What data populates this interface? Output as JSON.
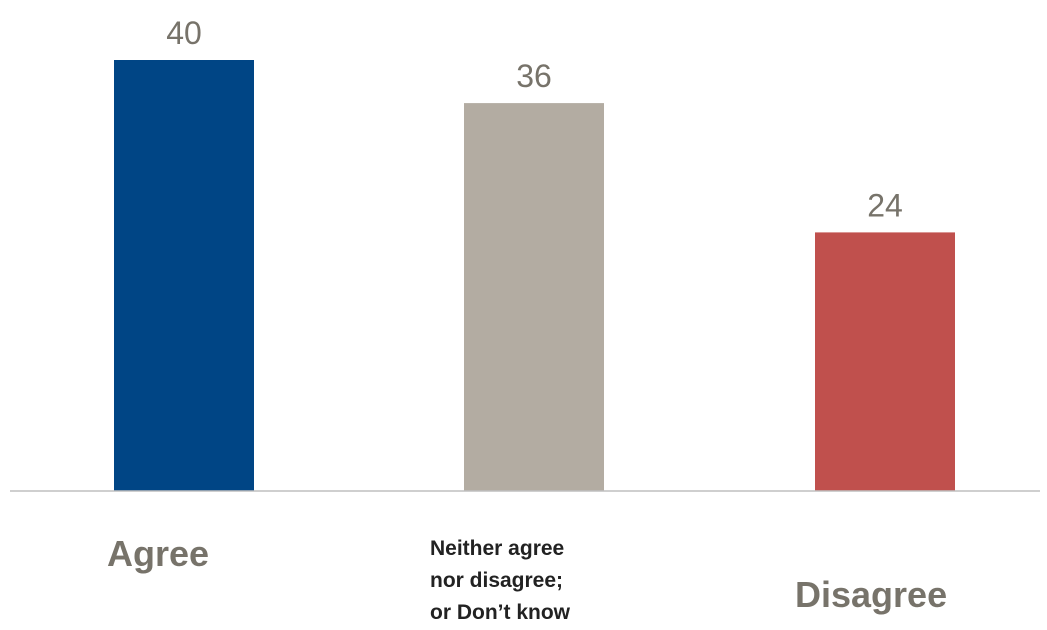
{
  "chart_data": {
    "type": "bar",
    "categories": [
      "Agree",
      "Neither agree nor disagree; or Don’t know",
      "Disagree"
    ],
    "category_lines": [
      [
        "Agree"
      ],
      [
        "Neither agree",
        "nor disagree;",
        "or Don’t know"
      ],
      [
        "Disagree"
      ]
    ],
    "values": [
      40,
      36,
      24
    ],
    "value_labels": [
      "40",
      "36",
      "24"
    ],
    "colors": [
      "#004585",
      "#b3aca2",
      "#c0504d"
    ],
    "ylim": [
      0,
      40
    ],
    "grid": false,
    "legend": "none",
    "title": "",
    "xlabel": "",
    "ylabel": ""
  }
}
